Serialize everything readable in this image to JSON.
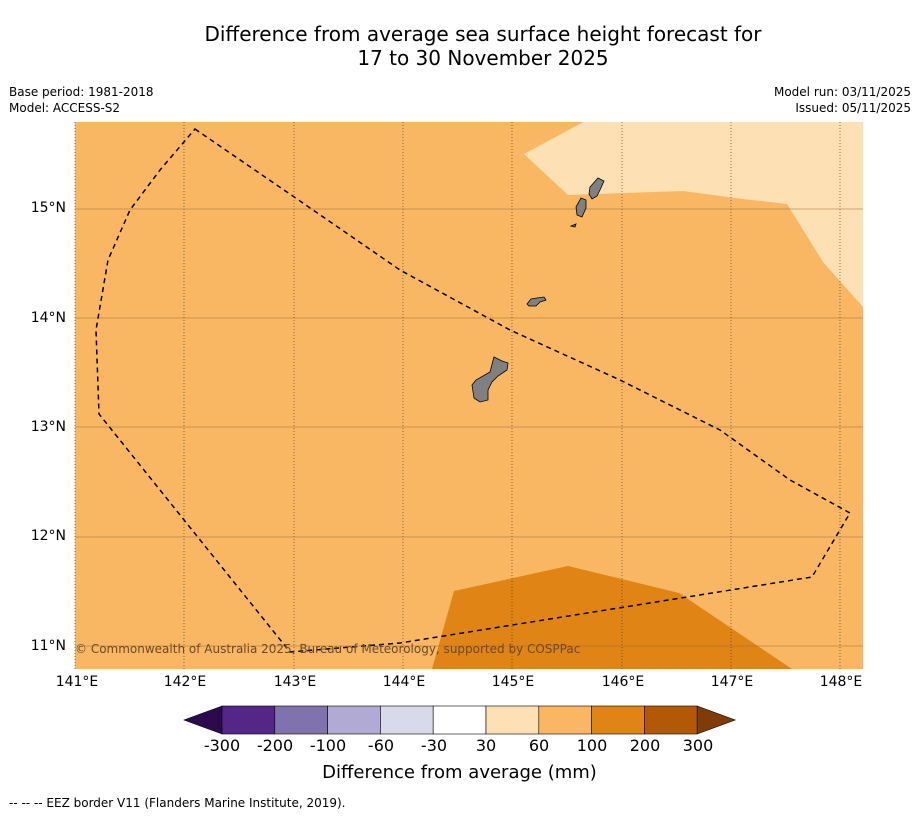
{
  "title": {
    "line1": "Difference from average sea surface height forecast for",
    "line2": "17 to 30 November 2025"
  },
  "meta": {
    "base_period": "Base period: 1981-2018",
    "model": "Model: ACCESS-S2",
    "model_run": "Model run: 03/11/2025",
    "issued": "Issued: 05/11/2025"
  },
  "map": {
    "lon_range": [
      141,
      148.2
    ],
    "lat_range": [
      10.8,
      15.8
    ],
    "lon_ticks": [
      "141°E",
      "142°E",
      "143°E",
      "144°E",
      "145°E",
      "146°E",
      "147°E",
      "148°E"
    ],
    "lat_ticks": [
      "11°N",
      "12°N",
      "13°N",
      "14°N",
      "15°N"
    ],
    "copyright": "© Commonwealth of Australia 2025, Bureau of Meteorology, supported by COSPPac",
    "colors": {
      "background": "#f9b763",
      "light": "#fde0b3",
      "dark": "#e08415",
      "land": "#808080"
    }
  },
  "colorbar": {
    "title": "Difference from average (mm)",
    "tick_labels": [
      "-300",
      "-200",
      "-100",
      "-60",
      "-30",
      "30",
      "60",
      "100",
      "200",
      "300"
    ],
    "colors": [
      "#2d0a4e",
      "#542687",
      "#8073ad",
      "#b1aad2",
      "#d8daeb",
      "#ffffff",
      "#fde0b3",
      "#f9b763",
      "#e08415",
      "#b35906",
      "#7f3b08"
    ]
  },
  "footnote": "--  --  -- EEZ border V11 (Flanders Marine Institute, 2019)."
}
